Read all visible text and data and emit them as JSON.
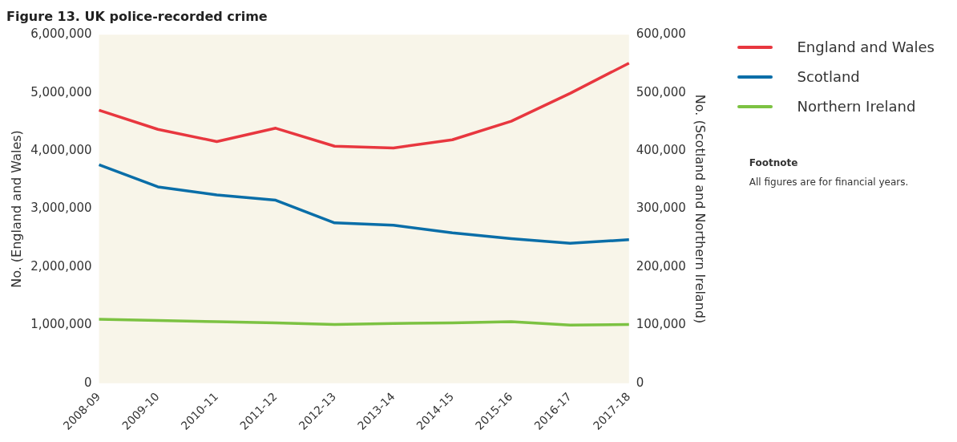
{
  "chart_data": {
    "type": "line",
    "title": "Figure 13. UK police-recorded crime",
    "categories": [
      "2008-09",
      "2009-10",
      "2010-11",
      "2011-12",
      "2012-13",
      "2013-14",
      "2014-15",
      "2015-16",
      "2016-17",
      "2017-18"
    ],
    "series": [
      {
        "name": "England and Wales",
        "color": "#e8373f",
        "values": [
          4700000,
          4370000,
          4160000,
          4390000,
          4080000,
          4050000,
          4190000,
          4510000,
          4990000,
          5510000
        ]
      },
      {
        "name": "Scotland",
        "color": "#0a6ea8",
        "axis": "y2",
        "values": [
          376000,
          338000,
          324000,
          315000,
          276000,
          272000,
          259000,
          249000,
          241000,
          247000
        ]
      },
      {
        "name": "Northern Ireland",
        "color": "#7cc242",
        "axis": "y2",
        "values": [
          110000,
          108000,
          106000,
          104000,
          101000,
          103000,
          104000,
          106000,
          100000,
          101000
        ]
      }
    ],
    "ylabel": "No. (England and Wales)",
    "y2label": "No. (Scotland and Northern Ireland)",
    "ylim": [
      0,
      6000000
    ],
    "yticks": [
      0,
      {
        "value": 1000000,
        "label": "1,000,000"
      },
      {
        "value": 2000000,
        "label": "2,000,000"
      },
      {
        "value": 3000000,
        "label": "3,000,000"
      },
      {
        "value": 4000000,
        "label": "4,000,000"
      },
      {
        "value": 5000000,
        "label": "5,000,000"
      },
      {
        "value": 6000000,
        "label": "6,000,000"
      }
    ],
    "y2lim": [
      0,
      600000
    ],
    "y2ticks": [
      0,
      {
        "value": 100000,
        "label": "100,000"
      },
      {
        "value": 200000,
        "label": "200,000"
      },
      {
        "value": 300000,
        "label": "300,000"
      },
      {
        "value": 400000,
        "label": "400,000"
      },
      {
        "value": 500000,
        "label": "500,000"
      },
      {
        "value": 600000,
        "label": "600,000"
      }
    ],
    "grid": false,
    "legend": "top right",
    "marker": "none",
    "line_style": "solid",
    "annotations": [
      "Footnote",
      "All figures are for financial years."
    ]
  }
}
